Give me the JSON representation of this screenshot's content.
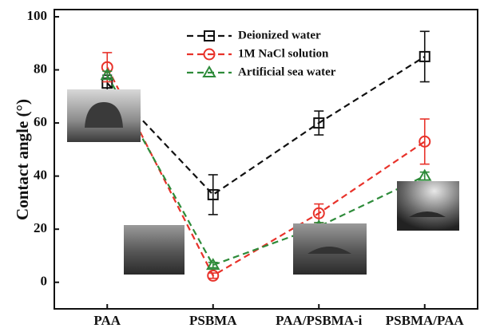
{
  "chart_data": {
    "type": "line",
    "y_label": "Contact angle (°)",
    "categories": [
      "PAA",
      "PSBMA",
      "PAA/PSBMA-i",
      "PSBMA/PAA"
    ],
    "series": [
      {
        "name": "Deionized water",
        "color": "#111111",
        "marker": "square",
        "values": [
          75,
          33,
          60,
          85
        ],
        "errors": [
          3,
          7.5,
          4.5,
          9.5
        ]
      },
      {
        "name": "1M NaCl solution",
        "color": "#e8322a",
        "marker": "circle",
        "values": [
          81,
          2.5,
          26,
          53
        ],
        "errors": [
          5.5,
          1,
          3.5,
          8.5
        ]
      },
      {
        "name": "Artificial sea water",
        "color": "#2e8b3a",
        "marker": "triangle",
        "values": [
          78,
          6.5,
          21,
          40
        ],
        "errors": [
          1.5,
          1,
          1.5,
          1.5
        ]
      }
    ],
    "ylim": [
      -10,
      100
    ],
    "yticks": [
      0,
      20,
      40,
      60,
      80,
      100
    ],
    "legend": "top"
  }
}
